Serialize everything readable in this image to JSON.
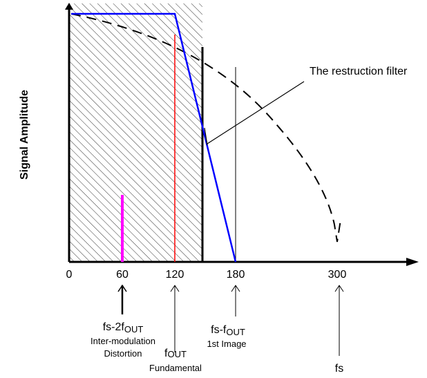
{
  "y_axis_label": "Signal Amplitude",
  "x_ticks": [
    "0",
    "60",
    "120",
    "180",
    "300"
  ],
  "annotation": "The restruction filter",
  "markers": [
    {
      "main": "fs-2f",
      "sub": "OUT",
      "desc1": "Inter-modulation",
      "desc2": "Distortion"
    },
    {
      "main": "f",
      "sub": "OUT",
      "desc1": "Fundamental"
    },
    {
      "main": "fs-f",
      "sub": "OUT",
      "desc1": "1st Image"
    },
    {
      "main": "fs"
    }
  ],
  "colors": {
    "filter": "#0000ff",
    "fundamental": "#ff0000",
    "distortion": "#ff00ff"
  }
}
